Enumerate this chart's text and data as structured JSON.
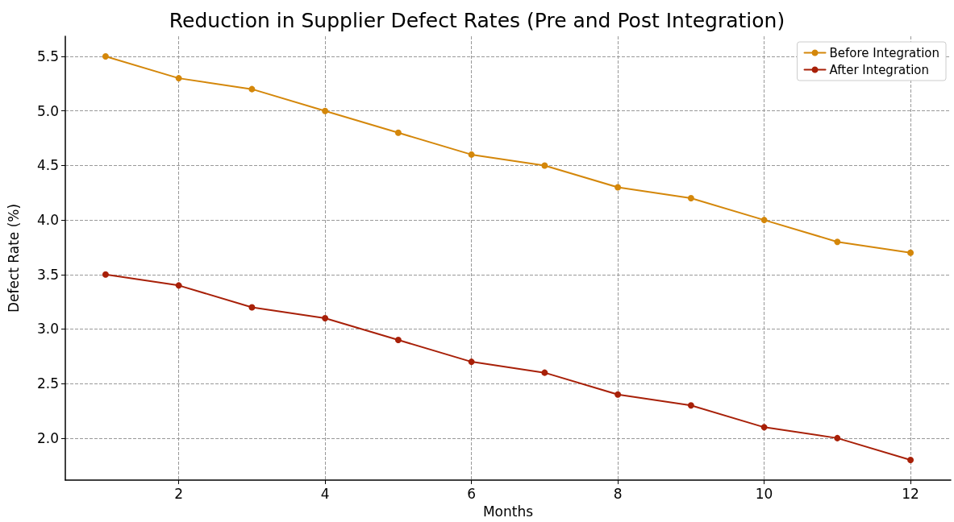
{
  "chart_data": {
    "type": "line",
    "title": "Reduction in Supplier Defect Rates (Pre and Post Integration)",
    "xlabel": "Months",
    "ylabel": "Defect Rate (%)",
    "x": [
      1,
      2,
      3,
      4,
      5,
      6,
      7,
      8,
      9,
      10,
      11,
      12
    ],
    "series": [
      {
        "name": "Before Integration",
        "color": "#d4870a",
        "values": [
          5.5,
          5.3,
          5.2,
          5.0,
          4.8,
          4.6,
          4.5,
          4.3,
          4.2,
          4.0,
          3.8,
          3.7
        ]
      },
      {
        "name": "After Integration",
        "color": "#a82008",
        "values": [
          3.5,
          3.4,
          3.2,
          3.1,
          2.9,
          2.7,
          2.6,
          2.4,
          2.3,
          2.1,
          2.0,
          1.8
        ]
      }
    ],
    "xlim": [
      0.45,
      12.55
    ],
    "xticks": [
      2,
      4,
      6,
      8,
      10,
      12
    ],
    "ylim": [
      1.615,
      5.685
    ],
    "yticks": [
      {
        "value": 2,
        "label": "2.0"
      },
      {
        "value": 2.5,
        "label": "2.5"
      },
      {
        "value": 3,
        "label": "3.0"
      },
      {
        "value": 3.5,
        "label": "3.5"
      },
      {
        "value": 4,
        "label": "4.0"
      },
      {
        "value": 4.5,
        "label": "4.5"
      },
      {
        "value": 5,
        "label": "5.0"
      },
      {
        "value": 5.5,
        "label": "5.5"
      }
    ],
    "grid": true,
    "legend": "top right",
    "marker": "circle",
    "line_style": "solid"
  }
}
